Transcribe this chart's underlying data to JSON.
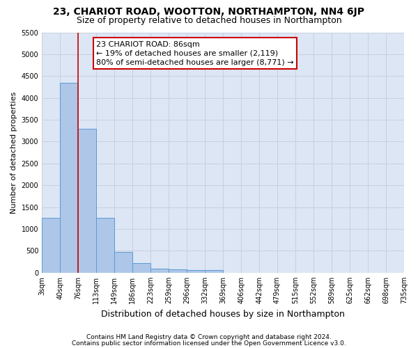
{
  "title": "23, CHARIOT ROAD, WOOTTON, NORTHAMPTON, NN4 6JP",
  "subtitle": "Size of property relative to detached houses in Northampton",
  "xlabel": "Distribution of detached houses by size in Northampton",
  "ylabel": "Number of detached properties",
  "bin_labels": [
    "3sqm",
    "40sqm",
    "76sqm",
    "113sqm",
    "149sqm",
    "186sqm",
    "223sqm",
    "259sqm",
    "296sqm",
    "332sqm",
    "369sqm",
    "406sqm",
    "442sqm",
    "479sqm",
    "515sqm",
    "552sqm",
    "589sqm",
    "625sqm",
    "662sqm",
    "698sqm",
    "735sqm"
  ],
  "bar_values": [
    1255,
    4350,
    3300,
    1255,
    480,
    220,
    100,
    70,
    60,
    60,
    0,
    0,
    0,
    0,
    0,
    0,
    0,
    0,
    0,
    0
  ],
  "bar_color": "#aec6e8",
  "bar_edge_color": "#5b9bd5",
  "subject_label": "23 CHARIOT ROAD: 86sqm",
  "annotation_line1": "← 19% of detached houses are smaller (2,119)",
  "annotation_line2": "80% of semi-detached houses are larger (8,771) →",
  "annotation_box_color": "#ffffff",
  "annotation_box_edge_color": "#cc0000",
  "red_line_color": "#cc0000",
  "red_line_bin_index": 2,
  "ylim": [
    0,
    5500
  ],
  "yticks": [
    0,
    500,
    1000,
    1500,
    2000,
    2500,
    3000,
    3500,
    4000,
    4500,
    5000,
    5500
  ],
  "grid_color": "#c8d0dc",
  "bg_color": "#dce6f5",
  "footer1": "Contains HM Land Registry data © Crown copyright and database right 2024.",
  "footer2": "Contains public sector information licensed under the Open Government Licence v3.0.",
  "title_fontsize": 10,
  "subtitle_fontsize": 9,
  "ylabel_fontsize": 8,
  "xlabel_fontsize": 9,
  "tick_fontsize": 7,
  "footer_fontsize": 6.5,
  "annot_fontsize": 8
}
